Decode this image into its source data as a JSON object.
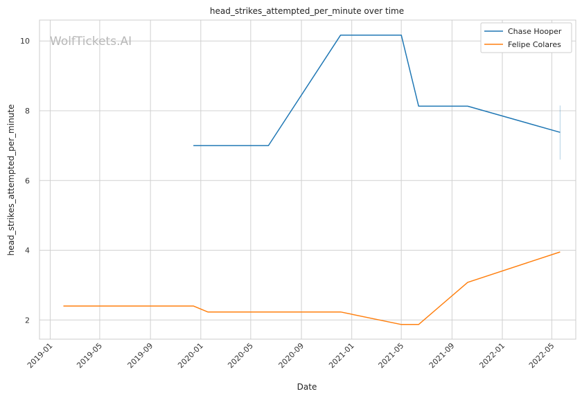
{
  "watermark": "WolfTickets.AI",
  "colors": {
    "chase": "#1f77b4",
    "felipe": "#ff7f0e",
    "grid": "#d0d0d0",
    "frame": "#cccccc"
  },
  "chart_data": {
    "type": "line",
    "title": "head_strikes_attempted_per_minute over time",
    "xlabel": "Date",
    "ylabel": "head_strikes_attempted_per_minute",
    "x_ticks": [
      "2019-01",
      "2019-05",
      "2019-09",
      "2020-01",
      "2020-05",
      "2020-09",
      "2021-01",
      "2021-05",
      "2021-09",
      "2022-01",
      "2022-05"
    ],
    "y_ticks": [
      2,
      4,
      6,
      8,
      10
    ],
    "xlim": [
      "2018-12-06",
      "2022-06-28"
    ],
    "ylim": [
      1.45,
      10.6
    ],
    "grid": true,
    "legend_position": "top-right",
    "series": [
      {
        "name": "Chase Hooper",
        "color": "#1f77b4",
        "x": [
          "2019-12-14",
          "2020-06-13",
          "2020-12-05",
          "2021-05-01",
          "2021-06-12",
          "2021-10-09",
          "2022-05-21"
        ],
        "y": [
          7.0,
          7.0,
          10.17,
          10.17,
          8.13,
          8.13,
          7.38
        ]
      },
      {
        "name": "Felipe Colares",
        "color": "#ff7f0e",
        "x": [
          "2019-02-02",
          "2019-12-14",
          "2020-01-18",
          "2020-12-05",
          "2021-05-01",
          "2021-06-12",
          "2021-10-09",
          "2022-05-21"
        ],
        "y": [
          2.4,
          2.4,
          2.23,
          2.23,
          1.87,
          1.87,
          3.08,
          3.95
        ]
      }
    ],
    "error_bar": {
      "series": "Chase Hooper",
      "x": "2022-05-21",
      "low": 6.6,
      "high": 8.15
    }
  }
}
